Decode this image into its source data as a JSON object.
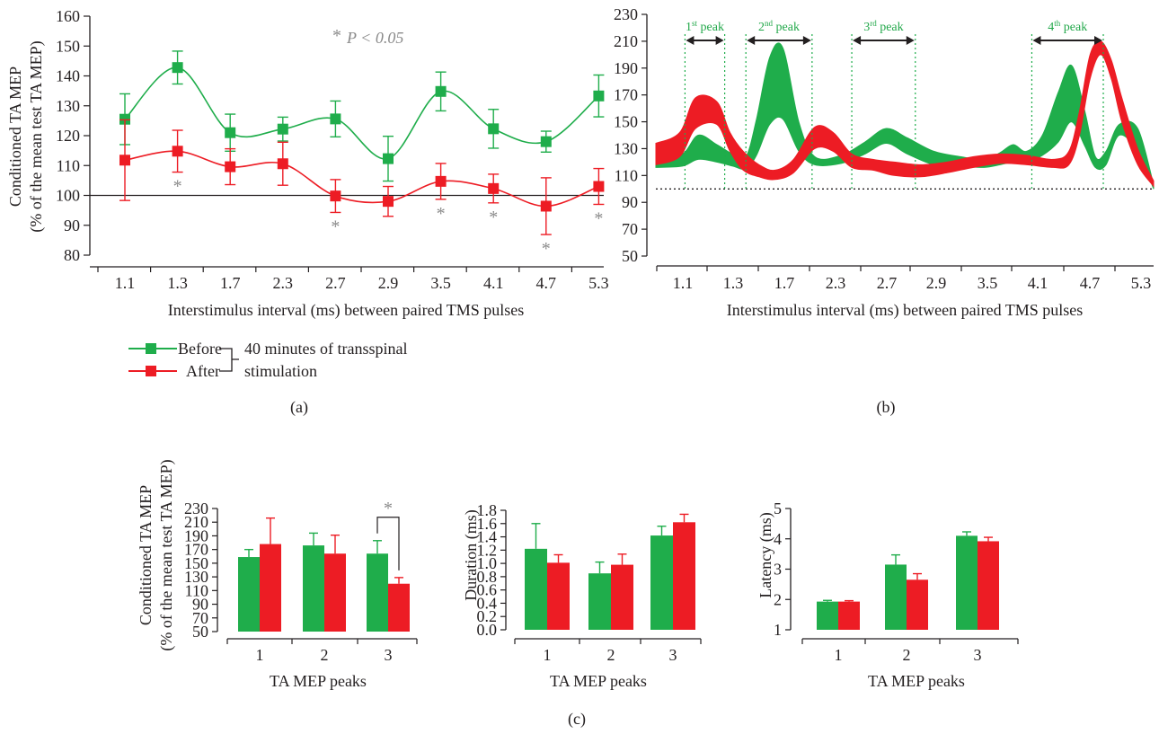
{
  "colors": {
    "before": "#1fad4b",
    "after": "#ed1c24",
    "text": "#231f20",
    "star": "#8a8a8a"
  },
  "panel_labels": {
    "a": "(a)",
    "b": "(b)",
    "c": "(c)"
  },
  "legend": {
    "before": "Before",
    "after": "After",
    "note_line1": "40 minutes of transspinal",
    "note_line2": "stimulation"
  },
  "significance": {
    "star": "*",
    "p_label": "P < 0.05"
  },
  "chart_data": [
    {
      "id": "a",
      "type": "line",
      "categories": [
        "1.1",
        "1.3",
        "1.7",
        "2.3",
        "2.7",
        "2.9",
        "3.5",
        "4.1",
        "4.7",
        "5.3"
      ],
      "ylabel_line1": "Conditioned TA MEP",
      "ylabel_line2": "(% of the mean test TA MEP)",
      "xlabel": "Interstimulus interval (ms) between paired TMS pulses",
      "ylim": [
        80,
        160
      ],
      "yticks": [
        80,
        90,
        100,
        110,
        120,
        130,
        140,
        150,
        160
      ],
      "reference_line": 100,
      "series": [
        {
          "name": "Before",
          "values": [
            125.5,
            142.8,
            121.0,
            122.2,
            125.6,
            112.3,
            134.8,
            122.3,
            118.0,
            133.3
          ],
          "errors": [
            8.5,
            5.5,
            6.2,
            4.0,
            6.0,
            7.5,
            6.5,
            6.5,
            3.5,
            7.0
          ]
        },
        {
          "name": "After",
          "values": [
            111.8,
            114.8,
            109.6,
            110.6,
            99.8,
            98.0,
            104.7,
            102.3,
            96.4,
            103.0
          ],
          "errors": [
            13.5,
            7.0,
            6.0,
            7.2,
            5.5,
            5.0,
            6.0,
            4.8,
            9.5,
            6.0
          ]
        }
      ],
      "significant_after": [
        "1.3",
        "2.7",
        "3.5",
        "4.1",
        "4.7",
        "5.3"
      ]
    },
    {
      "id": "b",
      "type": "area",
      "xlabel": "Interstimulus interval (ms) between paired TMS pulses",
      "ylim": [
        50,
        230
      ],
      "yticks": [
        50,
        70,
        90,
        110,
        130,
        150,
        170,
        190,
        210,
        230
      ],
      "xtick_labels": [
        "1.1",
        "1.3",
        "1.7",
        "2.3",
        "2.7",
        "2.9",
        "3.5",
        "4.1",
        "4.7",
        "5.3"
      ],
      "reference_line": 100,
      "peaks": [
        {
          "base": "1",
          "sup": "st",
          "rest": " peak",
          "start": 1.1,
          "end": 2.6
        },
        {
          "base": "2",
          "sup": "nd",
          "rest": " peak",
          "start": 3.4,
          "end": 5.9
        },
        {
          "base": "3",
          "sup": "rd",
          "rest": " peak",
          "start": 7.4,
          "end": 9.8
        },
        {
          "base": "4",
          "sup": "th",
          "rest": " peak",
          "start": 14.2,
          "end": 16.9
        }
      ],
      "before_band": {
        "x": [
          0.0,
          1.0,
          1.6,
          2.3,
          2.9,
          3.4,
          3.8,
          4.3,
          4.8,
          5.4,
          6.0,
          7.0,
          7.9,
          8.7,
          9.5,
          10.5,
          11.5,
          12.4,
          13.0,
          13.5,
          14.0,
          14.6,
          15.2,
          15.7,
          16.2,
          16.6,
          17.0,
          17.5,
          18.2,
          18.8
        ],
        "lower": [
          116,
          117,
          122,
          120,
          117,
          115,
          125,
          148,
          152,
          128,
          118,
          119,
          126,
          134,
          126,
          118,
          117,
          116,
          118,
          120,
          120,
          125,
          135,
          150,
          132,
          116,
          118,
          140,
          128,
          100
        ],
        "upper": [
          122,
          126,
          140,
          133,
          126,
          124,
          152,
          198,
          205,
          150,
          124,
          125,
          135,
          145,
          138,
          128,
          124,
          122,
          127,
          133,
          128,
          140,
          172,
          192,
          158,
          124,
          128,
          148,
          145,
          103
        ]
      },
      "after_band": {
        "x": [
          0.0,
          0.9,
          1.5,
          2.3,
          2.8,
          3.3,
          3.9,
          4.5,
          5.2,
          6.0,
          6.7,
          7.4,
          8.2,
          9.0,
          10.0,
          11.0,
          12.0,
          13.0,
          14.0,
          15.0,
          15.6,
          16.0,
          16.4,
          16.8,
          17.2,
          17.6,
          18.2,
          18.8
        ],
        "lower": [
          118,
          124,
          145,
          148,
          128,
          114,
          109,
          107,
          112,
          130,
          128,
          116,
          114,
          110,
          109,
          112,
          116,
          119,
          118,
          116,
          118,
          140,
          182,
          200,
          182,
          150,
          118,
          102
        ],
        "upper": [
          134,
          142,
          168,
          165,
          142,
          128,
          118,
          114,
          122,
          146,
          142,
          126,
          122,
          120,
          118,
          120,
          124,
          126,
          125,
          122,
          128,
          158,
          200,
          210,
          196,
          168,
          130,
          106
        ]
      }
    },
    {
      "id": "c1",
      "type": "bar",
      "categories": [
        "1",
        "2",
        "3"
      ],
      "ylabel_line1": "Conditioned TA MEP",
      "ylabel_line2": "(% of the mean test TA MEP)",
      "xlabel": "TA MEP peaks",
      "ylim": [
        50,
        230
      ],
      "yticks": [
        50,
        70,
        90,
        110,
        130,
        150,
        170,
        190,
        210,
        230
      ],
      "series": [
        {
          "name": "Before",
          "values": [
            159,
            176,
            164
          ],
          "errors": [
            11,
            18,
            19
          ]
        },
        {
          "name": "After",
          "values": [
            178,
            164,
            120
          ],
          "errors": [
            38,
            27,
            9
          ]
        }
      ],
      "significant": "3"
    },
    {
      "id": "c2",
      "type": "bar",
      "categories": [
        "1",
        "2",
        "3"
      ],
      "ylabel": "Duration (ms)",
      "xlabel": "TA MEP peaks",
      "ylim": [
        0,
        1.8
      ],
      "yticks": [
        "0.0",
        "0.2",
        "0.4",
        "0.6",
        "0.8",
        "1.0",
        "1.2",
        "1.4",
        "1.6",
        "1.8"
      ],
      "series": [
        {
          "name": "Before",
          "values": [
            1.22,
            0.85,
            1.42
          ],
          "errors": [
            0.38,
            0.17,
            0.14
          ]
        },
        {
          "name": "After",
          "values": [
            1.01,
            0.98,
            1.62
          ],
          "errors": [
            0.12,
            0.16,
            0.12
          ]
        }
      ]
    },
    {
      "id": "c3",
      "type": "bar",
      "categories": [
        "1",
        "2",
        "3"
      ],
      "ylabel": "Latency (ms)",
      "xlabel": "TA MEP peaks",
      "ylim": [
        1,
        5
      ],
      "yticks": [
        1,
        2,
        3,
        4,
        5
      ],
      "series": [
        {
          "name": "Before",
          "values": [
            1.93,
            3.15,
            4.1
          ],
          "errors": [
            0.04,
            0.32,
            0.13
          ]
        },
        {
          "name": "After",
          "values": [
            1.93,
            2.65,
            3.92
          ],
          "errors": [
            0.03,
            0.2,
            0.13
          ]
        }
      ]
    }
  ]
}
